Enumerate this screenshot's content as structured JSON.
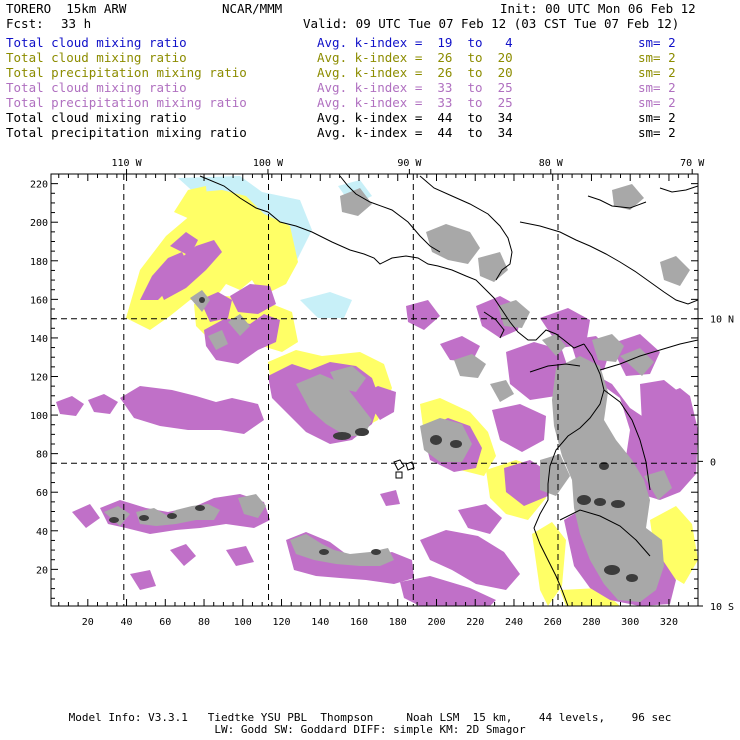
{
  "header": {
    "model": "TORERO  15km ARW",
    "org": "NCAR/MMM",
    "init": "Init: 00 UTC Mon 06 Feb 12",
    "fcst_label": "Fcst:",
    "fcst_value": "33 h",
    "valid": "Valid: 09 UTC Tue 07 Feb 12 (03 CST Tue 07 Feb 12)"
  },
  "legend": [
    {
      "label": "Total cloud mixing ratio",
      "stat": "Avg. k-index =  19  to   4",
      "sm": "sm= 2",
      "color": "#1010c8"
    },
    {
      "label": "Total cloud mixing ratio",
      "stat": "Avg. k-index =  26  to  20",
      "sm": "sm= 2",
      "color": "#8c8c00"
    },
    {
      "label": "Total precipitation mixing ratio",
      "stat": "Avg. k-index =  26  to  20",
      "sm": "sm= 2",
      "color": "#8c8c00"
    },
    {
      "label": "Total cloud mixing ratio",
      "stat": "Avg. k-index =  33  to  25",
      "sm": "sm= 2",
      "color": "#b070c0"
    },
    {
      "label": "Total precipitation mixing ratio",
      "stat": "Avg. k-index =  33  to  25",
      "sm": "sm= 2",
      "color": "#b070c0"
    },
    {
      "label": "Total cloud mixing ratio",
      "stat": "Avg. k-index =  44  to  34",
      "sm": "sm= 2",
      "color": "#000000"
    },
    {
      "label": "Total precipitation mixing ratio",
      "stat": "Avg. k-index =  44  to  34",
      "sm": "sm= 2",
      "color": "#000000"
    }
  ],
  "map": {
    "x_grid_range": [
      1,
      335
    ],
    "y_grid_range": [
      1,
      225
    ],
    "x_ticks": [
      "20",
      "40",
      "60",
      "80",
      "100",
      "120",
      "140",
      "160",
      "180",
      "200",
      "220",
      "240",
      "260",
      "280",
      "300",
      "320"
    ],
    "y_ticks": [
      "20",
      "40",
      "60",
      "80",
      "100",
      "120",
      "140",
      "160",
      "180",
      "200",
      "220"
    ],
    "lon_labels": [
      {
        "text": "110 W",
        "grid_x": 40
      },
      {
        "text": "100 W",
        "grid_x": 113
      },
      {
        "text": "90 W",
        "grid_x": 186
      },
      {
        "text": "80 W",
        "grid_x": 259
      },
      {
        "text": "70 W",
        "grid_x": 332
      }
    ],
    "lat_labels": [
      {
        "text": "10 N",
        "grid_y": 150
      },
      {
        "text": "0",
        "grid_y": 76
      },
      {
        "text": "10 S",
        "grid_y": 1
      }
    ],
    "colors": {
      "yellow": "#ffff66",
      "cyan": "#c8f0f8",
      "purple": "#c070c8",
      "gray": "#a8a8a8",
      "dark": "#3c3c3c",
      "coast": "#000000"
    }
  },
  "footer": {
    "line1": "Model Info: V3.3.1   Tiedtke YSU PBL  Thompson     Noah LSM  15 km,    44 levels,    96 sec",
    "line2": "LW: Godd SW: Goddard DIFF: simple KM: 2D Smagor"
  }
}
